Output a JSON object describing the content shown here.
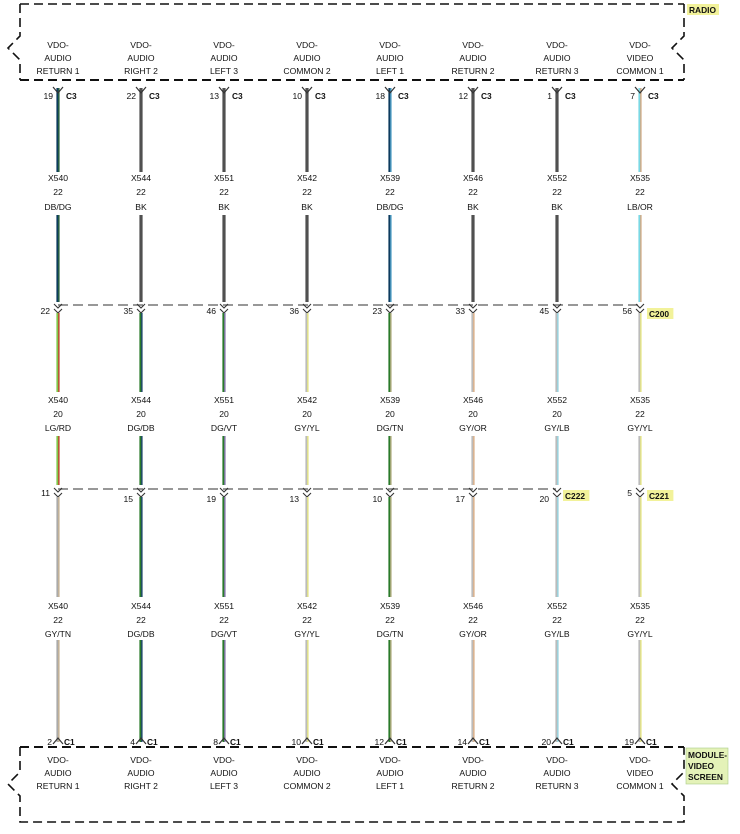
{
  "radio": {
    "label": "RADIO",
    "color": "#f2f29a",
    "pins": [
      [
        "VDO-",
        "AUDIO",
        "RETURN 1"
      ],
      [
        "VDO-",
        "AUDIO",
        "RIGHT 2"
      ],
      [
        "VDO-",
        "AUDIO",
        "LEFT 3"
      ],
      [
        "VDO-",
        "AUDIO",
        "COMMON 2"
      ],
      [
        "VDO-",
        "AUDIO",
        "LEFT 1"
      ],
      [
        "VDO-",
        "AUDIO",
        "RETURN 2"
      ],
      [
        "VDO-",
        "AUDIO",
        "RETURN 3"
      ],
      [
        "VDO-",
        "VIDEO",
        "COMMON 1"
      ]
    ]
  },
  "module": {
    "label": [
      "MODULE-",
      "VIDEO",
      "SCREEN"
    ],
    "color": "#e4f2b8",
    "pins": [
      [
        "VDO-",
        "AUDIO",
        "RETURN 1"
      ],
      [
        "VDO-",
        "AUDIO",
        "RIGHT 2"
      ],
      [
        "VDO-",
        "AUDIO",
        "LEFT 3"
      ],
      [
        "VDO-",
        "AUDIO",
        "COMMON 2"
      ],
      [
        "VDO-",
        "AUDIO",
        "LEFT 1"
      ],
      [
        "VDO-",
        "AUDIO",
        "RETURN 2"
      ],
      [
        "VDO-",
        "AUDIO",
        "RETURN 3"
      ],
      [
        "VDO-",
        "VIDEO",
        "COMMON 1"
      ]
    ]
  },
  "circuits": [
    {
      "top": {
        "pin": "19",
        "connector": "C3"
      },
      "seg1": {
        "circuit": "X540",
        "gauge": "22",
        "color_code": "DB/DG",
        "colors": [
          "#0d3b5e",
          "#2e6b3a"
        ]
      },
      "c200_pin": "22",
      "seg2": {
        "circuit": "X540",
        "gauge": "20",
        "color_code": "LG/RD",
        "colors": [
          "#7ec84a",
          "#cc2a2a"
        ]
      },
      "c222_pin": "11",
      "seg3": {
        "circuit": "X540",
        "gauge": "22",
        "color_code": "GY/TN",
        "colors": [
          "#aaaaaa",
          "#cdb792"
        ]
      },
      "bottom": {
        "pin": "2",
        "connector": "C1"
      }
    },
    {
      "top": {
        "pin": "22",
        "connector": "C3"
      },
      "seg1": {
        "circuit": "X544",
        "gauge": "22",
        "color_code": "BK",
        "colors": [
          "#505050",
          "#505050"
        ]
      },
      "c200_pin": "35",
      "seg2": {
        "circuit": "X544",
        "gauge": "20",
        "color_code": "DG/DB",
        "colors": [
          "#2a7a2a",
          "#1e3f7a"
        ]
      },
      "c222_pin": "15",
      "seg3": {
        "circuit": "X544",
        "gauge": "22",
        "color_code": "DG/DB",
        "colors": [
          "#2a7a2a",
          "#1e3f7a"
        ]
      },
      "bottom": {
        "pin": "4",
        "connector": "C1"
      }
    },
    {
      "top": {
        "pin": "13",
        "connector": "C3"
      },
      "seg1": {
        "circuit": "X551",
        "gauge": "22",
        "color_code": "BK",
        "colors": [
          "#505050",
          "#505050"
        ]
      },
      "c200_pin": "46",
      "seg2": {
        "circuit": "X551",
        "gauge": "20",
        "color_code": "DG/VT",
        "colors": [
          "#2a7a2a",
          "#9a78c8"
        ]
      },
      "c222_pin": "19",
      "seg3": {
        "circuit": "X551",
        "gauge": "22",
        "color_code": "DG/VT",
        "colors": [
          "#2a7a2a",
          "#9a78c8"
        ]
      },
      "bottom": {
        "pin": "8",
        "connector": "C1"
      }
    },
    {
      "top": {
        "pin": "10",
        "connector": "C3"
      },
      "seg1": {
        "circuit": "X542",
        "gauge": "22",
        "color_code": "BK",
        "colors": [
          "#505050",
          "#505050"
        ]
      },
      "c200_pin": "36",
      "seg2": {
        "circuit": "X542",
        "gauge": "20",
        "color_code": "GY/YL",
        "colors": [
          "#bbbbbb",
          "#eeee7a"
        ]
      },
      "c222_pin": "13",
      "seg3": {
        "circuit": "X542",
        "gauge": "22",
        "color_code": "GY/YL",
        "colors": [
          "#bbbbbb",
          "#eeee7a"
        ]
      },
      "bottom": {
        "pin": "10",
        "connector": "C1"
      }
    },
    {
      "top": {
        "pin": "18",
        "connector": "C3"
      },
      "seg1": {
        "circuit": "X539",
        "gauge": "22",
        "color_code": "DB/DG",
        "colors": [
          "#0d3b5e",
          "#5ab0d8"
        ]
      },
      "c200_pin": "23",
      "seg2": {
        "circuit": "X539",
        "gauge": "20",
        "color_code": "DG/TN",
        "colors": [
          "#2a7a2a",
          "#cdb792"
        ]
      },
      "c222_pin": "10",
      "seg3": {
        "circuit": "X539",
        "gauge": "22",
        "color_code": "DG/TN",
        "colors": [
          "#2a7a2a",
          "#cdb792"
        ]
      },
      "bottom": {
        "pin": "12",
        "connector": "C1"
      }
    },
    {
      "top": {
        "pin": "12",
        "connector": "C3"
      },
      "seg1": {
        "circuit": "X546",
        "gauge": "22",
        "color_code": "BK",
        "colors": [
          "#505050",
          "#505050"
        ]
      },
      "c200_pin": "33",
      "seg2": {
        "circuit": "X546",
        "gauge": "20",
        "color_code": "GY/OR",
        "colors": [
          "#bbbbbb",
          "#e4b080"
        ]
      },
      "c222_pin": "17",
      "seg3": {
        "circuit": "X546",
        "gauge": "22",
        "color_code": "GY/OR",
        "colors": [
          "#bbbbbb",
          "#e4b080"
        ]
      },
      "bottom": {
        "pin": "14",
        "connector": "C1"
      }
    },
    {
      "top": {
        "pin": "1",
        "connector": "C3"
      },
      "seg1": {
        "circuit": "X552",
        "gauge": "22",
        "color_code": "BK",
        "colors": [
          "#505050",
          "#505050"
        ]
      },
      "c200_pin": "45",
      "seg2": {
        "circuit": "X552",
        "gauge": "20",
        "color_code": "GY/LB",
        "colors": [
          "#bbbbbb",
          "#8ed8e8"
        ]
      },
      "c222_pin": "20",
      "seg3": {
        "circuit": "X552",
        "gauge": "22",
        "color_code": "GY/LB",
        "colors": [
          "#bbbbbb",
          "#8ed8e8"
        ]
      },
      "bottom": {
        "pin": "20",
        "connector": "C1"
      }
    },
    {
      "top": {
        "pin": "7",
        "connector": "C3"
      },
      "seg1": {
        "circuit": "X535",
        "gauge": "22",
        "color_code": "LB/OR",
        "colors": [
          "#7ad8e4",
          "#e4a070"
        ]
      },
      "c200_pin": "56",
      "seg2": {
        "circuit": "X535",
        "gauge": "22",
        "color_code": "GY/YL",
        "colors": [
          "#bbbbbb",
          "#eeee7a"
        ]
      },
      "c221_pin": "5",
      "seg3": {
        "circuit": "X535",
        "gauge": "22",
        "color_code": "GY/YL",
        "colors": [
          "#bbbbbb",
          "#eeee7a"
        ]
      },
      "bottom": {
        "pin": "19",
        "connector": "C1"
      }
    }
  ],
  "connectors": {
    "c200": {
      "label": "C200",
      "color": "#f2f29a"
    },
    "c222": {
      "label": "C222",
      "color": "#f2f29a"
    },
    "c221": {
      "label": "C221",
      "color": "#f2f29a"
    }
  }
}
